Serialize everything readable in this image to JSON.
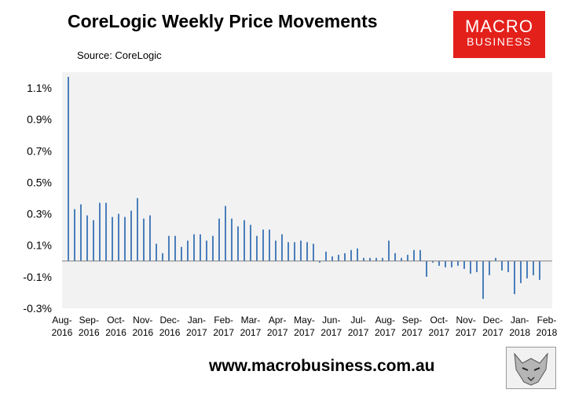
{
  "title": "CoreLogic Weekly Price Movements",
  "source": "Source: CoreLogic",
  "logo": {
    "line1": "MACRO",
    "line2": "BUSINESS",
    "color": "#e4201b"
  },
  "footer": {
    "url": "www.macrobusiness.com.au",
    "logo_icon": "wolf-icon"
  },
  "chart_data": {
    "type": "bar",
    "bar_color": "#4a7ebb",
    "plot_background": "#f2f2f2",
    "grid": false,
    "ylim": [
      -0.3,
      1.2
    ],
    "yticks": [
      "1.1%",
      "0.9%",
      "0.7%",
      "0.5%",
      "0.3%",
      "0.1%",
      "-0.1%",
      "-0.3%"
    ],
    "ytick_values": [
      1.1,
      0.9,
      0.7,
      0.5,
      0.3,
      0.1,
      -0.1,
      -0.3
    ],
    "xticks": [
      [
        "Aug-",
        "2016"
      ],
      [
        "Sep-",
        "2016"
      ],
      [
        "Oct-",
        "2016"
      ],
      [
        "Nov-",
        "2016"
      ],
      [
        "Dec-",
        "2016"
      ],
      [
        "Jan-",
        "2017"
      ],
      [
        "Feb-",
        "2017"
      ],
      [
        "Mar-",
        "2017"
      ],
      [
        "Apr-",
        "2017"
      ],
      [
        "May-",
        "2017"
      ],
      [
        "Jun-",
        "2017"
      ],
      [
        "Jul-",
        "2017"
      ],
      [
        "Aug-",
        "2017"
      ],
      [
        "Sep-",
        "2017"
      ],
      [
        "Oct-",
        "2017"
      ],
      [
        "Nov-",
        "2017"
      ],
      [
        "Dec-",
        "2017"
      ],
      [
        "Jan-",
        "2018"
      ],
      [
        "Feb-",
        "2018"
      ]
    ],
    "values": [
      1.17,
      0.33,
      0.36,
      0.29,
      0.26,
      0.37,
      0.37,
      0.28,
      0.3,
      0.28,
      0.32,
      0.4,
      0.27,
      0.29,
      0.11,
      0.05,
      0.16,
      0.16,
      0.09,
      0.13,
      0.17,
      0.17,
      0.13,
      0.16,
      0.27,
      0.35,
      0.27,
      0.22,
      0.26,
      0.23,
      0.16,
      0.2,
      0.2,
      0.13,
      0.17,
      0.12,
      0.12,
      0.13,
      0.12,
      0.11,
      -0.01,
      0.06,
      0.03,
      0.04,
      0.05,
      0.07,
      0.08,
      0.02,
      0.02,
      0.02,
      0.02,
      0.13,
      0.05,
      0.02,
      0.04,
      0.07,
      0.07,
      -0.1,
      -0.01,
      -0.03,
      -0.04,
      -0.04,
      -0.03,
      -0.05,
      -0.08,
      -0.07,
      -0.24,
      -0.09,
      0.02,
      -0.06,
      -0.07,
      -0.21,
      -0.14,
      -0.11,
      -0.09,
      -0.12
    ]
  }
}
